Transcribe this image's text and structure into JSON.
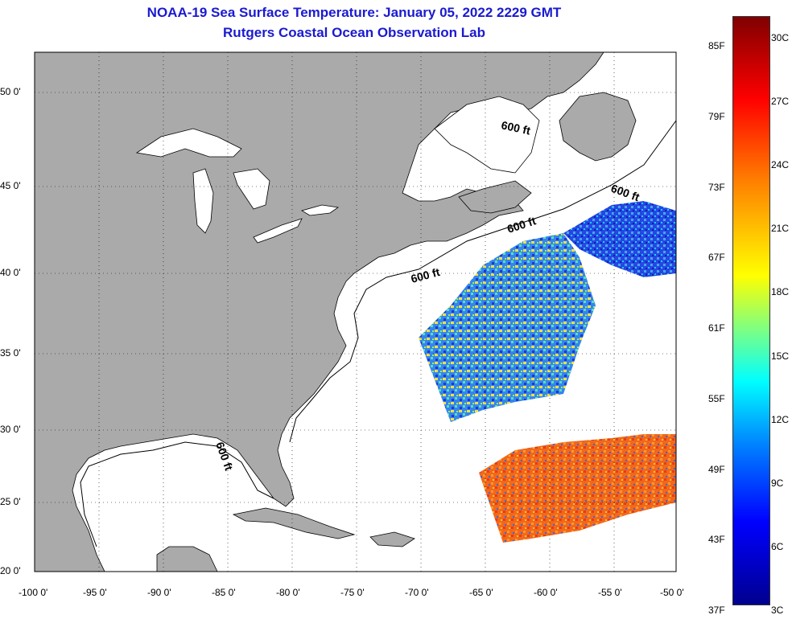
{
  "header": {
    "title_line1": "NOAA-19 Sea Surface Temperature:  January 05, 2022 2229 GMT",
    "title_line2": "Rutgers Coastal Ocean Observation Lab"
  },
  "map": {
    "lat_labels": [
      "50 0'",
      "45 0'",
      "40 0'",
      "35 0'",
      "30 0'",
      "25 0'",
      "20 0'"
    ],
    "lon_labels": [
      "-100 0'",
      "-95 0'",
      "-90 0'",
      "-85 0'",
      "-80 0'",
      "-75 0'",
      "-70 0'",
      "-65 0'",
      "-60 0'",
      "-55 0'",
      "-50 0'"
    ],
    "contour_labels": [
      "600 ft",
      "600 ft",
      "600 ft",
      "600 ft",
      "600 ft"
    ],
    "land_color": "#aaaaaa",
    "ocean_color": "#ffffff",
    "grid": "dotted"
  },
  "colorbar": {
    "fahrenheit": [
      "85F",
      "79F",
      "73F",
      "67F",
      "61F",
      "55F",
      "49F",
      "43F",
      "37F"
    ],
    "celsius": [
      "30C",
      "27C",
      "24C",
      "21C",
      "18C",
      "15C",
      "12C",
      "9C",
      "6C",
      "3C"
    ],
    "colors": [
      "#00008f",
      "#0000ff",
      "#0080ff",
      "#00ffff",
      "#80ff80",
      "#ffff00",
      "#ff8000",
      "#ff0000",
      "#800000"
    ]
  }
}
